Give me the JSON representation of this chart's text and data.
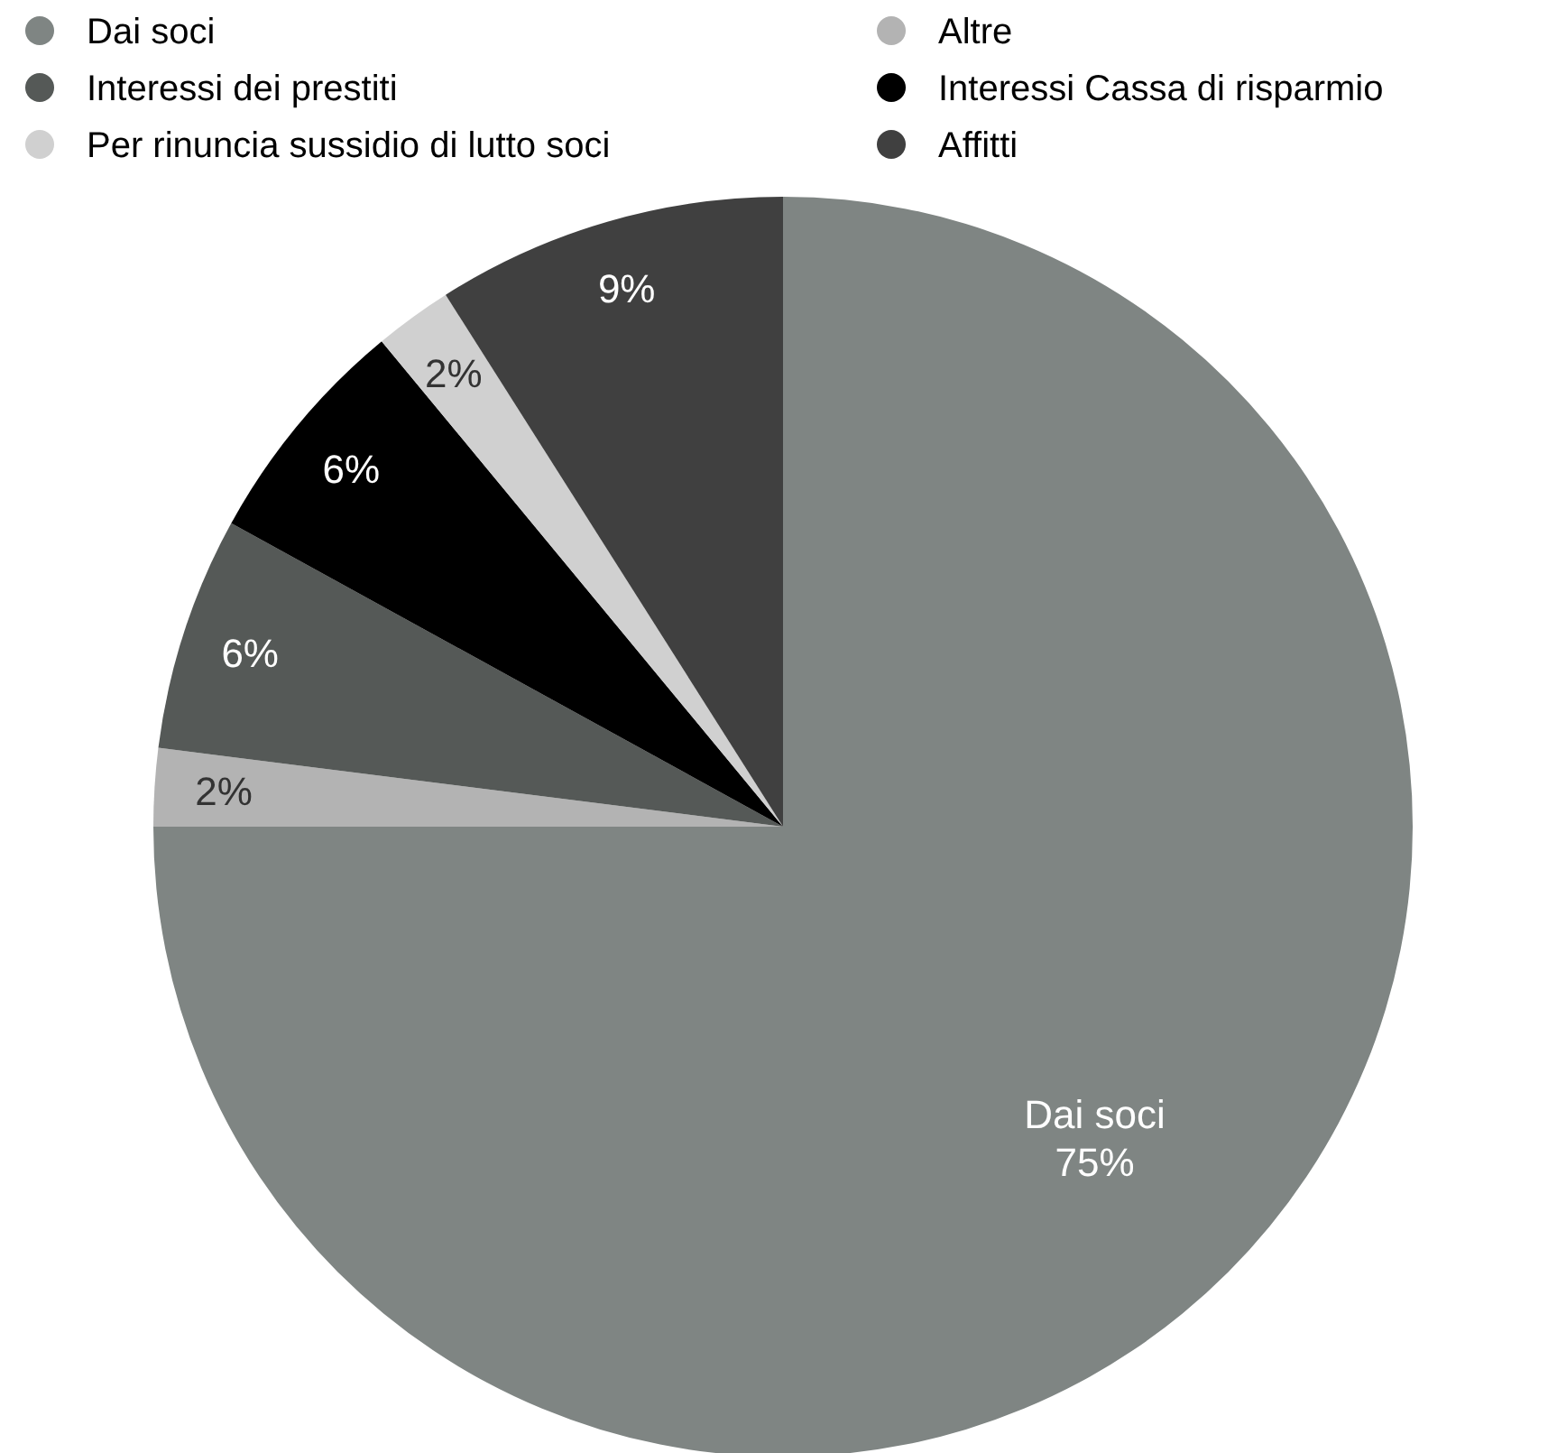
{
  "chart_data": {
    "type": "pie",
    "categories": [
      "Dai soci",
      "Altre",
      "Interessi dei prestiti",
      "Interessi Cassa di risparmio",
      "Per rinuncia sussidio di lutto soci",
      "Affitti"
    ],
    "values": [
      75,
      2,
      6,
      6,
      2,
      9
    ],
    "colors": [
      "#7f8583",
      "#b3b3b3",
      "#555957",
      "#000000",
      "#d0d0d0",
      "#404040"
    ],
    "value_labels": [
      "Dai soci\n75%",
      "2%",
      "6%",
      "6%",
      "2%",
      "9%"
    ],
    "legend": "top"
  }
}
